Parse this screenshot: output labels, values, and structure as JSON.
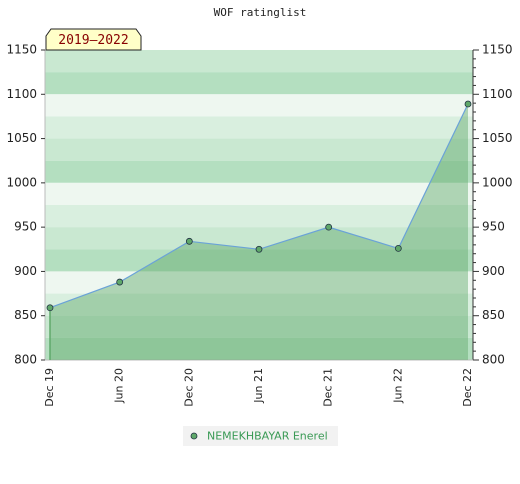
{
  "chart_data": {
    "type": "area",
    "title": "WOF ratinglist",
    "annotation": "2019–2022",
    "categories": [
      "Dec 19",
      "Jun 20",
      "Dec 20",
      "Jun 21",
      "Dec 21",
      "Jun 22",
      "Dec 22"
    ],
    "series": [
      {
        "name": "NEMEKHBAYAR Enerel",
        "color": "#5fa86a",
        "values": [
          859,
          888,
          934,
          925,
          950,
          926,
          1089
        ]
      }
    ],
    "ylim": [
      800,
      1150
    ],
    "yticks": [
      800,
      850,
      900,
      950,
      1000,
      1050,
      1100,
      1150
    ],
    "y2lim": [
      800,
      1150
    ],
    "y2ticks": [
      800,
      850,
      900,
      950,
      1000,
      1050,
      1100,
      1150
    ]
  }
}
